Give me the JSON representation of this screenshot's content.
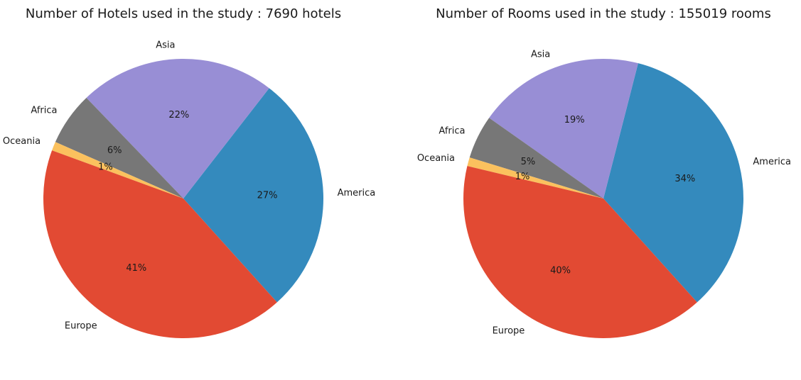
{
  "chart_data": [
    {
      "type": "pie",
      "title": "Number of Hotels used in the study : 7690 hotels",
      "categories": [
        "America",
        "Asia",
        "Africa",
        "Oceania",
        "Europe"
      ],
      "values": [
        27,
        22,
        6,
        1,
        41
      ],
      "value_labels": [
        "27%",
        "22%",
        "6%",
        "1%",
        "41%"
      ],
      "colors": [
        "#348abd",
        "#988ed5",
        "#777777",
        "#fbc15e",
        "#e24a33"
      ]
    },
    {
      "type": "pie",
      "title": "Number of Rooms used in the study : 155019 rooms",
      "categories": [
        "America",
        "Asia",
        "Africa",
        "Oceania",
        "Europe"
      ],
      "values": [
        34,
        19,
        5,
        1,
        40
      ],
      "value_labels": [
        "34%",
        "19%",
        "5%",
        "1%",
        "40%"
      ],
      "colors": [
        "#348abd",
        "#988ed5",
        "#777777",
        "#fbc15e",
        "#e24a33"
      ]
    }
  ]
}
